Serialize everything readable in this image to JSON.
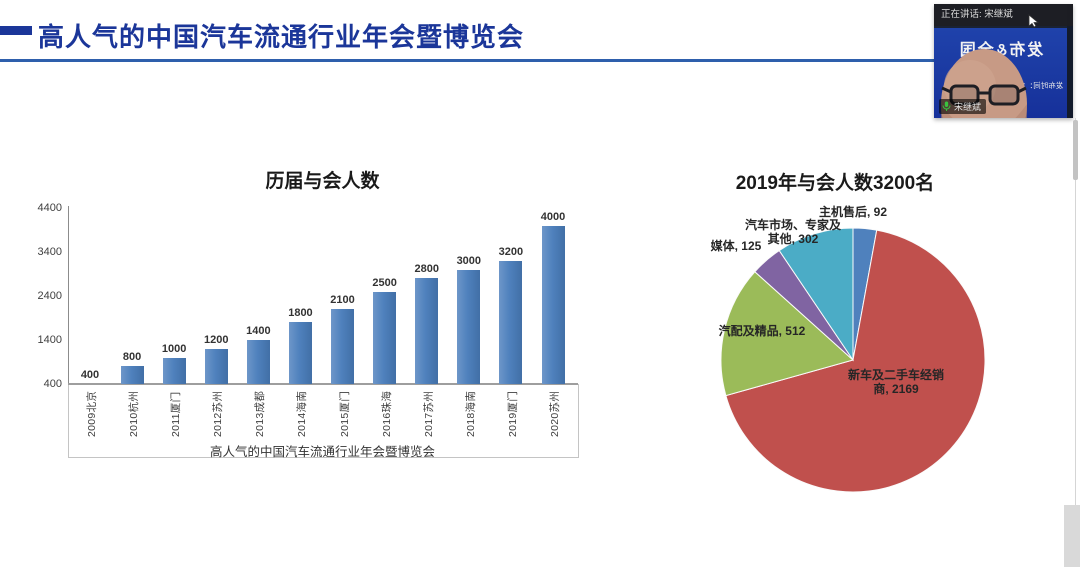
{
  "header": {
    "title": "高人气的中国汽车流通行业年会暨博览会"
  },
  "meeting": {
    "speaking_label": "正在讲话: 宋继斌",
    "participant_name": "宋继斌",
    "banner_text": "发布&全国",
    "banner_subtext": "发布时间：10月14日",
    "mic_color": "#3ac13f"
  },
  "colors": {
    "header_blue": "#1b3699",
    "underline_blue": "#2e5fac"
  },
  "chart_data": [
    {
      "type": "bar",
      "title": "历届与会人数",
      "xlabel": "高人气的中国汽车流通行业年会暨博览会",
      "categories": [
        "2009北京",
        "2010杭州",
        "2011厦门",
        "2012苏州",
        "2013成都",
        "2014海南",
        "2015厦门",
        "2016珠海",
        "2017苏州",
        "2018海南",
        "2019厦门",
        "2020苏州"
      ],
      "values": [
        400,
        800,
        1000,
        1200,
        1400,
        1800,
        2100,
        2500,
        2800,
        3000,
        3200,
        4000
      ],
      "ylim": [
        400,
        4400
      ],
      "yticks": [
        400,
        1400,
        2400,
        3400,
        4400
      ],
      "bar_color": "#4F81BD",
      "data_labels": true,
      "grid": false,
      "legend": false
    },
    {
      "type": "pie",
      "title": "2019年与会人数3200名",
      "total": 3200,
      "start_angle_deg": 0,
      "direction": "clockwise",
      "label_format": "name, value",
      "legend": false,
      "slices": [
        {
          "name": "主机售后",
          "value": 92,
          "color": "#4F81BD"
        },
        {
          "name": "新车及二手车经销商",
          "value": 2169,
          "color": "#C0504D"
        },
        {
          "name": "汽配及精品",
          "value": 512,
          "color": "#9BBB59"
        },
        {
          "name": "媒体",
          "value": 125,
          "color": "#8064A2"
        },
        {
          "name": "汽车市场、专家及其他",
          "value": 302,
          "color": "#4BACC6"
        }
      ]
    }
  ]
}
